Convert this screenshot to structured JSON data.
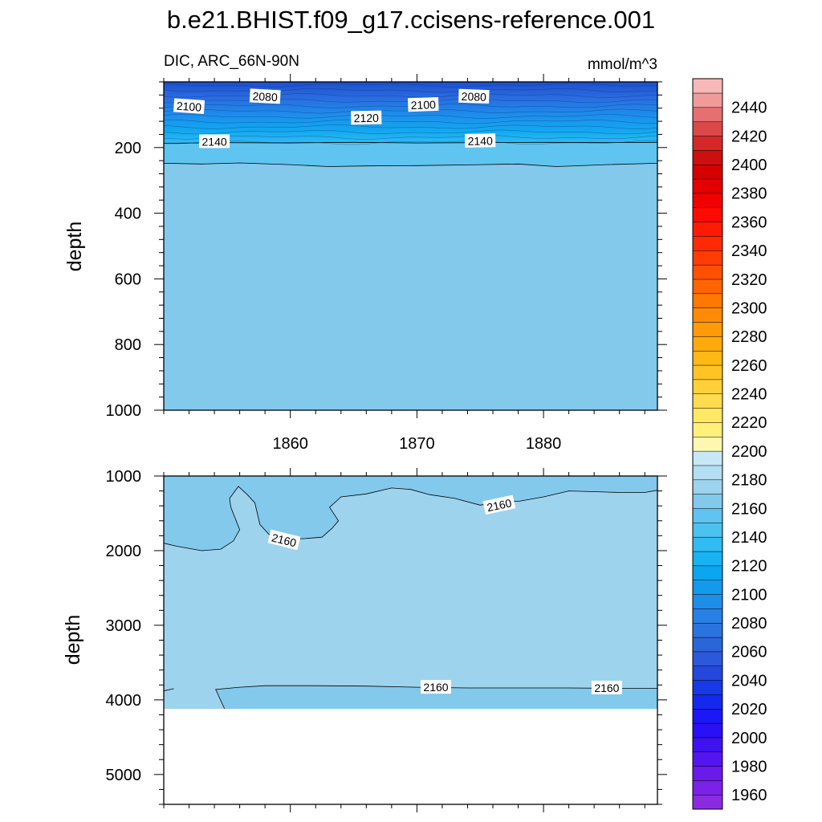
{
  "title": "b.e21.BHIST.f09_g17.ccisens-reference.001",
  "subtitle_left": "DIC, ARC_66N-90N",
  "subtitle_right": "mmol/m^3",
  "colors": {
    "top_band": "#2a66d8",
    "fill_2140": "#5fc4f0",
    "fill_2150": "#82c9ec",
    "fill_2160": "#9ed3ee",
    "lines": "#000000"
  },
  "chart_data": [
    {
      "type": "contour",
      "panel": "upper",
      "variable": "DIC",
      "region": "ARC_66N-90N",
      "units": "mmol/m^3",
      "xlim": [
        1850,
        1889
      ],
      "ylim": [
        0,
        1000
      ],
      "y_inverted": true,
      "xticks": [
        1860,
        1870,
        1880
      ],
      "yticks": [
        200,
        400,
        600,
        800,
        1000
      ],
      "ylabel": "depth",
      "contour_lines": [
        {
          "value": 2140,
          "x": [
            1850,
            1855,
            1860,
            1865,
            1870,
            1875,
            1880,
            1885,
            1889
          ],
          "y": [
            187,
            185,
            186,
            184,
            186,
            185,
            184,
            185,
            184
          ]
        },
        {
          "value": 2150,
          "x": [
            1850,
            1853,
            1856,
            1860,
            1863,
            1866,
            1870,
            1875,
            1878,
            1881,
            1885,
            1889
          ],
          "y": [
            248,
            250,
            247,
            252,
            258,
            256,
            255,
            252,
            250,
            258,
            252,
            248
          ]
        }
      ],
      "contour_labels": [
        {
          "text": "2100",
          "x": 1852,
          "y": 75
        },
        {
          "text": "2080",
          "x": 1858,
          "y": 45
        },
        {
          "text": "2100",
          "x": 1870.5,
          "y": 70
        },
        {
          "text": "2080",
          "x": 1874.5,
          "y": 45
        },
        {
          "text": "2120",
          "x": 1866,
          "y": 110
        },
        {
          "text": "2140",
          "x": 1854,
          "y": 182
        },
        {
          "text": "2140",
          "x": 1875,
          "y": 180
        }
      ]
    },
    {
      "type": "contour",
      "panel": "lower",
      "variable": "DIC",
      "xlim": [
        1850,
        1889
      ],
      "ylim": [
        1000,
        5400
      ],
      "y_inverted": true,
      "ocean_bottom": 4120,
      "xticks": [
        1860,
        1870,
        1880
      ],
      "yticks": [
        1000,
        2000,
        3000,
        4000,
        5000
      ],
      "ylabel": "depth",
      "contour_lines": [
        {
          "value": 2160,
          "x": [
            1850,
            1851,
            1853,
            1854.5,
            1855.5,
            1856,
            1855.3,
            1855.2,
            1855.9,
            1856.6,
            1857.2,
            1857.6,
            1858.3,
            1859.5,
            1861,
            1862.5,
            1863.3,
            1863.8,
            1863.1,
            1864,
            1866,
            1868,
            1869.5,
            1871,
            1873,
            1875,
            1877,
            1878,
            1880,
            1882,
            1884,
            1886,
            1888,
            1889
          ],
          "y": [
            1900,
            1940,
            2000,
            1980,
            1870,
            1720,
            1420,
            1300,
            1140,
            1250,
            1360,
            1650,
            1780,
            1830,
            1840,
            1820,
            1700,
            1600,
            1420,
            1280,
            1240,
            1160,
            1180,
            1250,
            1300,
            1390,
            1330,
            1340,
            1280,
            1200,
            1210,
            1220,
            1220,
            1190
          ]
        },
        {
          "value": 2160,
          "x": [
            1850,
            1850.8
          ],
          "y": [
            3880,
            3850
          ]
        },
        {
          "value": 2160,
          "x": [
            1854.8,
            1854.1,
            1856,
            1858,
            1862,
            1866,
            1870,
            1874,
            1878,
            1882,
            1886,
            1889
          ],
          "y": [
            4120,
            3860,
            3830,
            3810,
            3810,
            3815,
            3830,
            3840,
            3840,
            3840,
            3845,
            3845
          ]
        }
      ],
      "contour_labels": [
        {
          "text": "2160",
          "x": 1876.5,
          "y": 1390
        },
        {
          "text": "2160",
          "x": 1859.5,
          "y": 1860
        },
        {
          "text": "2160",
          "x": 1871.5,
          "y": 3830
        },
        {
          "text": "2160",
          "x": 1885,
          "y": 3840
        }
      ]
    },
    {
      "type": "colorbar",
      "levels": [
        1950,
        1960,
        1970,
        1980,
        1990,
        2000,
        2010,
        2020,
        2030,
        2040,
        2050,
        2060,
        2070,
        2080,
        2090,
        2100,
        2110,
        2120,
        2130,
        2140,
        2150,
        2160,
        2170,
        2180,
        2190,
        2200,
        2210,
        2220,
        2230,
        2240,
        2250,
        2260,
        2270,
        2280,
        2290,
        2300,
        2310,
        2320,
        2330,
        2340,
        2350,
        2360,
        2370,
        2380,
        2390,
        2400,
        2410,
        2420,
        2430,
        2440,
        2450,
        2460
      ],
      "tick_labels": [
        "1960",
        "1980",
        "2000",
        "2020",
        "2040",
        "2060",
        "2080",
        "2100",
        "2120",
        "2140",
        "2160",
        "2180",
        "2200",
        "2220",
        "2240",
        "2260",
        "2280",
        "2300",
        "2320",
        "2340",
        "2360",
        "2380",
        "2400",
        "2420",
        "2440"
      ],
      "colors": [
        "#8a2be2",
        "#7a22e6",
        "#6a1aeb",
        "#5416ef",
        "#3f12f2",
        "#2a10f4",
        "#1a18f4",
        "#1528ee",
        "#1938e6",
        "#2448de",
        "#2c58dc",
        "#2a66d8",
        "#2a74e0",
        "#2680e6",
        "#1f8ee8",
        "#149aec",
        "#0aa6f0",
        "#18b2f2",
        "#30bcf2",
        "#4cc2f0",
        "#5fc4f0",
        "#82c9ec",
        "#9ed3ee",
        "#b4def2",
        "#c8e8f6",
        "#fff7b0",
        "#fff07a",
        "#ffe864",
        "#ffdc4e",
        "#ffd038",
        "#ffc424",
        "#ffb814",
        "#ffaa0c",
        "#ff9a08",
        "#ff8a06",
        "#ff7804",
        "#ff6404",
        "#ff5004",
        "#ff3c04",
        "#ff2a04",
        "#ff1a04",
        "#ff0a04",
        "#f20000",
        "#e40000",
        "#d60000",
        "#cc1010",
        "#d42828",
        "#dc4848",
        "#e67070",
        "#f09a9a",
        "#f8b8b8"
      ]
    }
  ]
}
